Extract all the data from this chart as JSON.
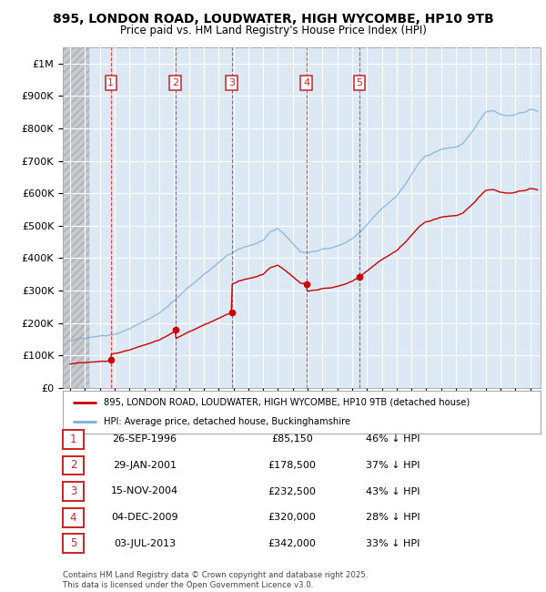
{
  "title": "895, LONDON ROAD, LOUDWATER, HIGH WYCOMBE, HP10 9TB",
  "subtitle": "Price paid vs. HM Land Registry's House Price Index (HPI)",
  "ylabel_ticks": [
    "£0",
    "£100K",
    "£200K",
    "£300K",
    "£400K",
    "£500K",
    "£600K",
    "£700K",
    "£800K",
    "£900K",
    "£1M"
  ],
  "ytick_vals": [
    0,
    100000,
    200000,
    300000,
    400000,
    500000,
    600000,
    700000,
    800000,
    900000,
    1000000
  ],
  "ylim": [
    0,
    1050000
  ],
  "xlim_start": 1993.5,
  "xlim_end": 2025.7,
  "sale_dates_decimal": [
    1996.74,
    2001.08,
    2004.88,
    2009.92,
    2013.5
  ],
  "sale_prices": [
    85150,
    178500,
    232500,
    320000,
    342000
  ],
  "sale_labels": [
    "1",
    "2",
    "3",
    "4",
    "5"
  ],
  "legend_red_label": "895, LONDON ROAD, LOUDWATER, HIGH WYCOMBE, HP10 9TB (detached house)",
  "legend_blue_label": "HPI: Average price, detached house, Buckinghamshire",
  "table_rows": [
    [
      "1",
      "26-SEP-1996",
      "£85,150",
      "46% ↓ HPI"
    ],
    [
      "2",
      "29-JAN-2001",
      "£178,500",
      "37% ↓ HPI"
    ],
    [
      "3",
      "15-NOV-2004",
      "£232,500",
      "43% ↓ HPI"
    ],
    [
      "4",
      "04-DEC-2009",
      "£320,000",
      "28% ↓ HPI"
    ],
    [
      "5",
      "03-JUL-2013",
      "£342,000",
      "33% ↓ HPI"
    ]
  ],
  "footnote": "Contains HM Land Registry data © Crown copyright and database right 2025.\nThis data is licensed under the Open Government Licence v3.0.",
  "bg_color": "#ffffff",
  "plot_bg_color": "#dce9f5",
  "grid_color": "#ffffff",
  "red_line_color": "#cc0000",
  "blue_line_color": "#7aaddc",
  "dashed_red_color": "#ee3333",
  "box_color": "#cc2222",
  "hpi_key_years": [
    1994,
    1994.5,
    1995,
    1995.5,
    1996,
    1996.5,
    1997,
    1997.5,
    1998,
    1998.5,
    1999,
    1999.5,
    2000,
    2000.5,
    2001,
    2001.5,
    2002,
    2002.5,
    2003,
    2003.5,
    2004,
    2004.5,
    2005,
    2005.5,
    2006,
    2006.5,
    2007,
    2007.5,
    2008,
    2008.5,
    2009,
    2009.5,
    2010,
    2010.5,
    2011,
    2011.5,
    2012,
    2012.5,
    2013,
    2013.5,
    2014,
    2014.5,
    2015,
    2015.5,
    2016,
    2016.5,
    2017,
    2017.5,
    2018,
    2018.5,
    2019,
    2019.5,
    2020,
    2020.5,
    2021,
    2021.5,
    2022,
    2022.5,
    2023,
    2023.5,
    2024,
    2024.5,
    2025,
    2025.5
  ],
  "hpi_key_vals": [
    143000,
    147000,
    152000,
    158000,
    162000,
    165000,
    170000,
    178000,
    188000,
    198000,
    210000,
    222000,
    235000,
    255000,
    275000,
    295000,
    315000,
    335000,
    355000,
    373000,
    392000,
    410000,
    422000,
    432000,
    440000,
    448000,
    458000,
    480000,
    490000,
    470000,
    445000,
    420000,
    415000,
    420000,
    430000,
    432000,
    438000,
    448000,
    460000,
    478000,
    500000,
    525000,
    548000,
    568000,
    590000,
    620000,
    655000,
    690000,
    710000,
    720000,
    730000,
    735000,
    738000,
    748000,
    775000,
    810000,
    845000,
    850000,
    840000,
    835000,
    840000,
    845000,
    855000,
    850000
  ]
}
